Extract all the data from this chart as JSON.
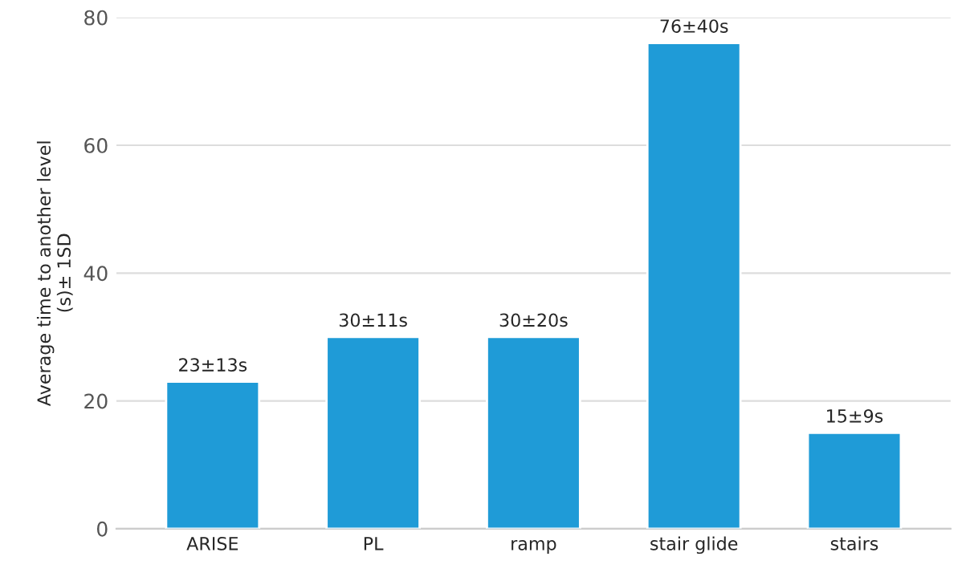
{
  "chart_data": {
    "type": "bar",
    "ylabel": "Average time to another level\n(s)± 1SD",
    "categories": [
      "ARISE",
      "PL",
      "ramp",
      "stair glide",
      "stairs"
    ],
    "values": [
      23,
      30,
      30,
      76,
      15
    ],
    "value_labels": [
      "23±13s",
      "30±11s",
      "30±20s",
      "76±40s",
      "15±9s"
    ],
    "color": "#1f9bd7",
    "ylim": [
      0,
      80
    ],
    "yticks": [
      0,
      20,
      40,
      60,
      80
    ],
    "grid": "y"
  }
}
